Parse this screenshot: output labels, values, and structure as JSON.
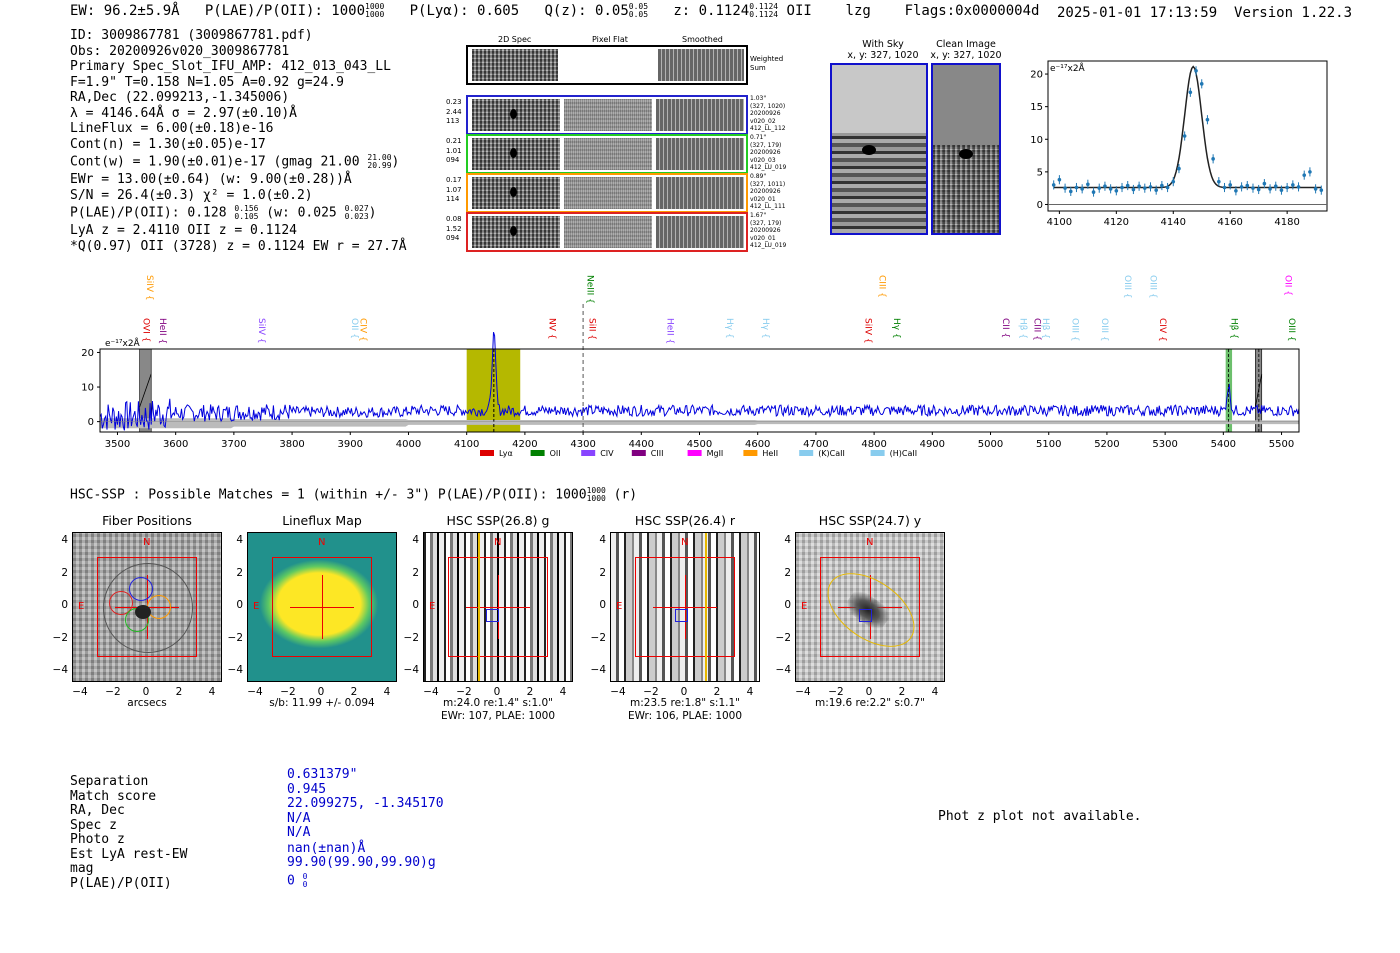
{
  "header": {
    "ew": "EW: 96.2±5.9Å",
    "plae_label": "P(LAE)/P(OII): 1000",
    "plae_hi": "1000",
    "plae_lo": "1000",
    "plya": "P(Lyα): 0.605",
    "qz_label": "Q(z): 0.05",
    "qz_hi": "0.05",
    "qz_lo": "0.05",
    "z_label": "z: 0.1124",
    "z_hi": "0.1124",
    "z_lo": "0.1124",
    "z_line": "OII",
    "lzg": "lzg",
    "flags": "Flags:0x0000004d",
    "timestamp": "2025-01-01 17:13:59",
    "version": "Version 1.22.3"
  },
  "info": {
    "id": "ID: 3009867781 (3009867781.pdf)",
    "obs": "Obs: 20200926v020_3009867781",
    "primary": "Primary Spec_Slot_IFU_AMP: 412_013_043_LL",
    "fwhm": "F=1.9\"  T=0.158  N=1.05  A=0.92  g=24.9",
    "radec": "RA,Dec (22.099213,-1.345006)",
    "lambda": "λ = 4146.64Å  σ = 2.97(±0.10)Å",
    "lineflux": "LineFlux = 6.00(±0.18)e-16",
    "contn": "Cont(n) = 1.30(±0.05)e-17",
    "contw": "Cont(w) = 1.90(±0.01)e-17 (gmag 21.00",
    "contw_hi": "21.00",
    "contw_lo": "20.99",
    "contw_close": ")",
    "ewr": "EWr = 13.00(±0.64) (w: 9.00(±0.28))Å",
    "sn": "S/N = 26.4(±0.3)  χ² = 1.0(±0.2)",
    "plae": "P(LAE)/P(OII): 0.128",
    "plae_hi": "0.156",
    "plae_lo": "0.105",
    "plae_w": "(w: 0.025",
    "plae_w_hi": "0.027",
    "plae_w_lo": "0.023",
    "plae_close": ")",
    "lya": "LyA z = 2.4110  OII z = 0.1124",
    "q": "*Q(0.97) OII (3728) z = 0.1124  EW r = 27.7Å"
  },
  "cutouts": {
    "col_headers": [
      "2D Spec",
      "Pixel Flat",
      "Smoothed"
    ],
    "weighted_sum": "Weighted Sum",
    "rows": [
      {
        "left": [
          "0.23",
          "2.44",
          "113"
        ],
        "right": [
          "1.03\"",
          "(327, 1020)",
          "20200926",
          "v020_02",
          "412_LL_112"
        ],
        "color": "#2222cc"
      },
      {
        "left": [
          "0.21",
          "1.01",
          "094"
        ],
        "right": [
          "0.71\"",
          "(327, 179)",
          "20200926",
          "v020_03",
          "412_LU_019"
        ],
        "color": "#22cc22"
      },
      {
        "left": [
          "0.17",
          "1.07",
          "114"
        ],
        "right": [
          "0.89\"",
          "(327, 1011)",
          "20200926",
          "v020_01",
          "412_LL_111"
        ],
        "color": "#ff9900"
      },
      {
        "left": [
          "0.08",
          "1.52",
          "094"
        ],
        "right": [
          "1.67\"",
          "(327, 179)",
          "20200926",
          "v020_01",
          "412_LU_019"
        ],
        "color": "#dd2222"
      }
    ]
  },
  "sky": {
    "with_sky_title": "With Sky",
    "with_sky_coords": "x, y: 327, 1020",
    "clean_title": "Clean Image",
    "clean_coords": "x, y: 327, 1020"
  },
  "chart_data": [
    {
      "type": "scatter",
      "title": "",
      "ylabel": "e⁻¹⁷x2Å",
      "xlim": [
        4096,
        4194
      ],
      "ylim": [
        -1,
        22
      ],
      "xticks": [
        4100,
        4120,
        4140,
        4160,
        4180
      ],
      "yticks": [
        0,
        5,
        10,
        15,
        20
      ],
      "x": [
        4098,
        4100,
        4102,
        4104,
        4106,
        4108,
        4110,
        4112,
        4114,
        4116,
        4118,
        4120,
        4122,
        4124,
        4126,
        4128,
        4130,
        4132,
        4134,
        4136,
        4138,
        4140,
        4142,
        4144,
        4146,
        4148,
        4150,
        4152,
        4154,
        4156,
        4158,
        4160,
        4162,
        4164,
        4166,
        4168,
        4170,
        4172,
        4174,
        4176,
        4178,
        4180,
        4182,
        4184,
        4186,
        4188,
        4190,
        4192
      ],
      "y": [
        3.0,
        3.8,
        2.5,
        2.0,
        2.6,
        2.4,
        3.1,
        1.9,
        2.5,
        2.8,
        2.4,
        2.1,
        2.6,
        2.9,
        2.3,
        2.8,
        2.5,
        2.7,
        2.2,
        2.9,
        2.6,
        3.5,
        5.5,
        10.5,
        17.2,
        20.5,
        18.5,
        13.0,
        7.0,
        3.5,
        2.6,
        3.0,
        2.1,
        2.7,
        2.9,
        2.5,
        2.3,
        3.2,
        2.4,
        2.8,
        2.2,
        2.6,
        3.0,
        2.7,
        4.5,
        5.0,
        2.4,
        2.2
      ],
      "fit_peak": 18.8,
      "fit_center": 4147,
      "fit_sigma": 2.97,
      "fit_continuum": 2.6
    },
    {
      "type": "line",
      "ylabel": "e⁻¹⁷x2Å",
      "xlim": [
        3470,
        5530
      ],
      "ylim": [
        -3,
        21
      ],
      "xticks": [
        3500,
        3600,
        3700,
        3800,
        3900,
        4000,
        4100,
        4200,
        4300,
        4400,
        4500,
        4600,
        4700,
        4800,
        4900,
        5000,
        5100,
        5200,
        5300,
        5400,
        5500
      ],
      "yticks": [
        0,
        10,
        20
      ],
      "highlight_range": [
        4100,
        4192
      ],
      "emission_line": 4146.64,
      "dashed_line": 4300,
      "masked_bands": [
        [
          3538,
          3558
        ],
        [
          5455,
          5466
        ]
      ],
      "green_band": [
        5404,
        5415
      ],
      "line_labels": [
        {
          "name": "OVI",
          "x": 3540,
          "color": "#dd0000",
          "row": 2
        },
        {
          "name": "SiIV",
          "x": 3546,
          "color": "#ff9900",
          "row": 1
        },
        {
          "name": "HeII",
          "x": 3568,
          "color": "#800080",
          "row": 2
        },
        {
          "name": "SiIV",
          "x": 3738,
          "color": "#8844ff",
          "row": 2
        },
        {
          "name": "OII",
          "x": 3898,
          "color": "#88ccee",
          "row": 2
        },
        {
          "name": "CIV",
          "x": 3912,
          "color": "#ff9900",
          "row": 2
        },
        {
          "name": "NV",
          "x": 4237,
          "color": "#dd0000",
          "row": 2
        },
        {
          "name": "NeIII",
          "x": 4302,
          "color": "#008000",
          "row": 1
        },
        {
          "name": "SiII",
          "x": 4306,
          "color": "#dd0000",
          "row": 2
        },
        {
          "name": "HeII",
          "x": 4440,
          "color": "#8844ff",
          "row": 2
        },
        {
          "name": "Hγ",
          "x": 4542,
          "color": "#88ccee",
          "row": 2
        },
        {
          "name": "Hγ",
          "x": 4604,
          "color": "#88ccee",
          "row": 2
        },
        {
          "name": "SiIV",
          "x": 4780,
          "color": "#dd0000",
          "row": 2
        },
        {
          "name": "CIII",
          "x": 4804,
          "color": "#ff9900",
          "row": 1
        },
        {
          "name": "Hγ",
          "x": 4829,
          "color": "#008000",
          "row": 2
        },
        {
          "name": "CII",
          "x": 5016,
          "color": "#800080",
          "row": 2
        },
        {
          "name": "Hβ",
          "x": 5046,
          "color": "#88ccee",
          "row": 2
        },
        {
          "name": "CIII",
          "x": 5070,
          "color": "#800080",
          "row": 2
        },
        {
          "name": "Hβ",
          "x": 5085,
          "color": "#88ccee",
          "row": 2
        },
        {
          "name": "OIII",
          "x": 5136,
          "color": "#88ccee",
          "row": 2
        },
        {
          "name": "OIII",
          "x": 5186,
          "color": "#88ccee",
          "row": 2
        },
        {
          "name": "OIII",
          "x": 5226,
          "color": "#88ccee",
          "row": 1
        },
        {
          "name": "OIII",
          "x": 5270,
          "color": "#88ccee",
          "row": 1
        },
        {
          "name": "CIV",
          "x": 5286,
          "color": "#dd0000",
          "row": 2
        },
        {
          "name": "Hβ",
          "x": 5409,
          "color": "#008000",
          "row": 2
        },
        {
          "name": "OII",
          "x": 5502,
          "color": "#ff00ff",
          "row": 1
        },
        {
          "name": "OIII",
          "x": 5508,
          "color": "#008000",
          "row": 2
        }
      ],
      "legend": [
        {
          "label": "Lyα",
          "color": "#dd0000"
        },
        {
          "label": "OII",
          "color": "#008000"
        },
        {
          "label": "CIV",
          "color": "#8844ff"
        },
        {
          "label": "CIII",
          "color": "#800080"
        },
        {
          "label": "MgII",
          "color": "#ff00ff"
        },
        {
          "label": "HeII",
          "color": "#ff9900"
        },
        {
          "label": "(K)CaII",
          "color": "#88ccee"
        },
        {
          "label": "(H)CaII",
          "color": "#88ccee"
        }
      ]
    }
  ],
  "hsc": {
    "title_prefix": "HSC-SSP : Possible Matches = 1 (within +/- 3\")  P(LAE)/P(OII): 1000",
    "title_hi": "1000",
    "title_lo": "1000",
    "title_suffix": "(r)",
    "panels": [
      {
        "title": "Fiber Positions",
        "caption1": "arcsecs",
        "caption2": "",
        "north": "N",
        "east": "E"
      },
      {
        "title": "Lineflux Map",
        "caption1": "s/b: 11.99 +/- 0.094",
        "caption2": "",
        "north": "N",
        "east": "E"
      },
      {
        "title": "HSC SSP(26.8) g",
        "caption1": "m:24.0  re:1.4\"  s:1.0\"",
        "caption2": "EWr: 107, PLAE: 1000",
        "north": "N",
        "east": "E"
      },
      {
        "title": "HSC SSP(26.4) r",
        "caption1": "m:23.5  re:1.8\"  s:1.1\"",
        "caption2": "EWr: 106, PLAE: 1000",
        "north": "N",
        "east": "E"
      },
      {
        "title": "HSC SSP(24.7) y",
        "caption1": "m:19.6  re:2.2\"  s:0.7\"",
        "caption2": "",
        "north": "N",
        "east": "E"
      }
    ],
    "tick_labels": [
      "4",
      "2",
      "0",
      "−2",
      "−4"
    ],
    "xtick_labels": [
      "−4",
      "−2",
      "0",
      "2",
      "4"
    ]
  },
  "match": {
    "labels": [
      "Separation",
      "Match score",
      "RA, Dec",
      "Spec z",
      "Photo z",
      "Est LyA rest-EW",
      "mag",
      "P(LAE)/P(OII)"
    ],
    "values": [
      "0.631379\"",
      "0.945",
      "22.099275, -1.345170",
      "N/A",
      "N/A",
      "nan(±nan)Å",
      "99.90(99.90,99.90)g",
      "0"
    ],
    "plae_hi": "0",
    "plae_lo": "0",
    "phot_z": "Phot z plot not available."
  }
}
